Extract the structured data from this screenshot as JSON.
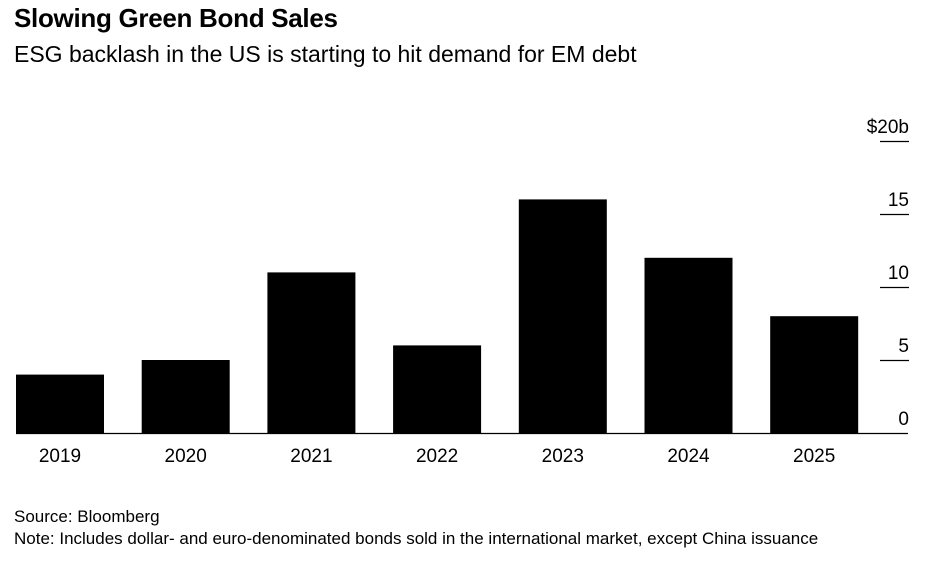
{
  "title": "Slowing Green Bond Sales",
  "subtitle": "ESG backlash in the US is starting to hit demand for EM debt",
  "source": "Source: Bloomberg",
  "note": "Note: Includes dollar- and euro-denominated bonds sold in the international market, except China issuance",
  "colors": {
    "bar": "#000000",
    "axis": "#000000",
    "background": "#ffffff"
  },
  "chart_data": {
    "type": "bar",
    "title": "Slowing Green Bond Sales",
    "subtitle": "ESG backlash in the US is starting to hit demand for EM debt",
    "categories": [
      "2019",
      "2020",
      "2021",
      "2022",
      "2023",
      "2024",
      "2025"
    ],
    "values": [
      4.0,
      5.0,
      11.0,
      6.0,
      16.0,
      12.0,
      8.0
    ],
    "unit": "$ billions",
    "xlabel": "",
    "ylabel": "",
    "ylim": [
      0,
      20
    ],
    "yticks": [
      0,
      5,
      10,
      15,
      20
    ],
    "ytick_labels": [
      "0",
      "5",
      "10",
      "15",
      "$20b"
    ],
    "y_axis_position": "right",
    "grid": false,
    "legend": "none"
  }
}
